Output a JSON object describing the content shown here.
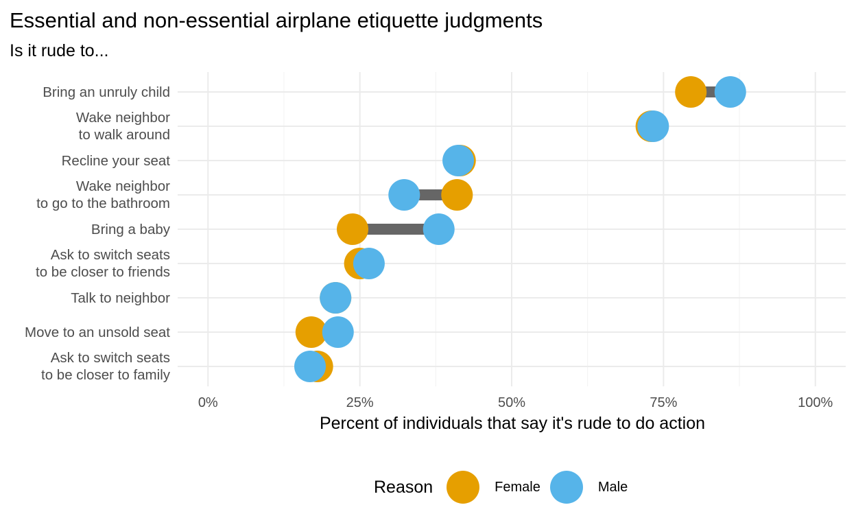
{
  "chart_data": {
    "type": "dumbbell",
    "title": "Essential and non-essential airplane etiquette judgments",
    "subtitle": "Is it rude to...",
    "xlabel": "Percent of individuals that say it's rude to do action",
    "ylabel": "",
    "xlim": [
      -0.05,
      1.05
    ],
    "x_ticks": [
      {
        "value": 0,
        "label": "0%"
      },
      {
        "value": 0.25,
        "label": "25%"
      },
      {
        "value": 0.5,
        "label": "50%"
      },
      {
        "value": 0.75,
        "label": "75%"
      },
      {
        "value": 1.0,
        "label": "100%"
      }
    ],
    "grid": true,
    "legend": {
      "title": "Reason",
      "position": "bottom"
    },
    "categories": [
      "Bring an unruly child",
      "Wake neighbor \nto walk around",
      "Recline your seat",
      "Wake neighbor \nto go to the bathroom",
      "Bring a baby",
      "Ask to switch seats \nto be closer to friends",
      "Talk to neighbor",
      "Move to an unsold seat",
      "Ask to switch seats \nto be closer to family"
    ],
    "series": [
      {
        "name": "Female",
        "color": "#E69F00",
        "values": [
          0.795,
          0.73,
          0.415,
          0.41,
          0.238,
          0.25,
          0.21,
          0.17,
          0.18
        ]
      },
      {
        "name": "Male",
        "color": "#56B4E9",
        "values": [
          0.86,
          0.733,
          0.412,
          0.323,
          0.38,
          0.265,
          0.21,
          0.214,
          0.168
        ]
      }
    ],
    "segment_color": "#666666"
  }
}
